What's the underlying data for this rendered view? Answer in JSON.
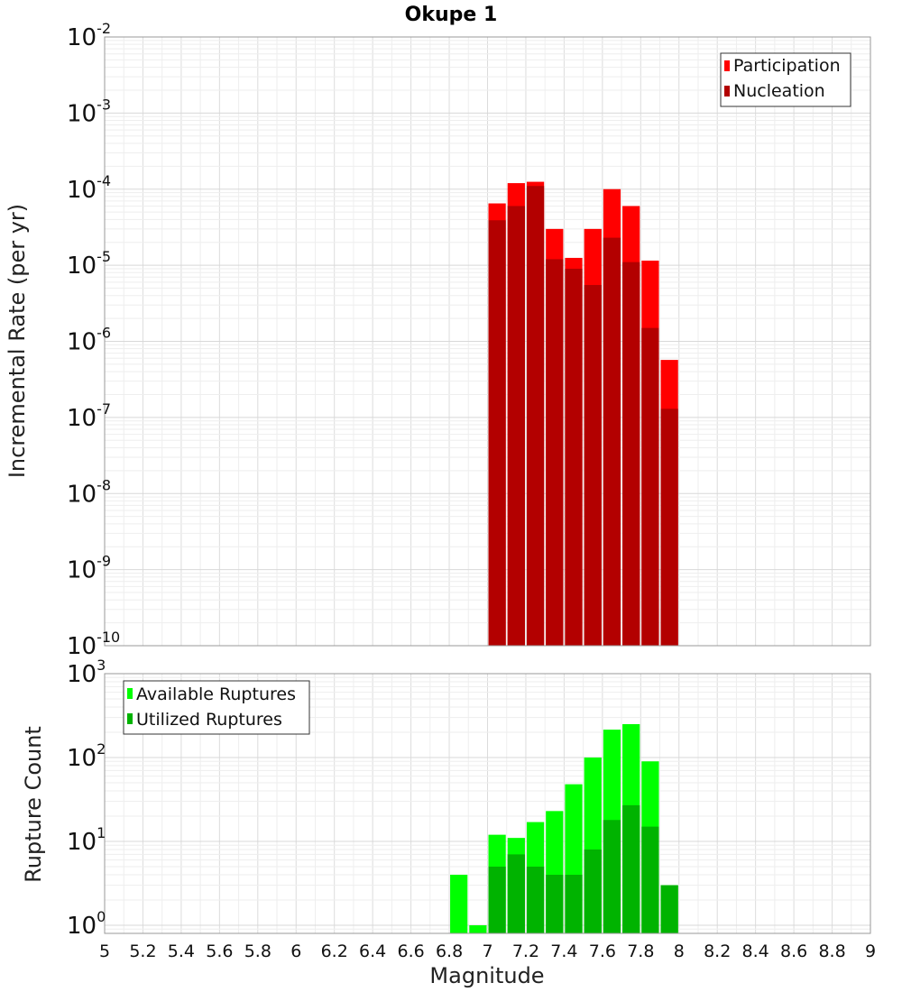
{
  "chart_data": [
    {
      "type": "bar",
      "title": "Okupe 1",
      "xlabel": "",
      "ylabel": "Incremental Rate (per yr)",
      "yscale": "log",
      "ylim": [
        1e-10,
        0.01
      ],
      "xlim": [
        5,
        9
      ],
      "grid": true,
      "legend_position": "top-right",
      "x": [
        7.05,
        7.15,
        7.25,
        7.35,
        7.45,
        7.55,
        7.65,
        7.75,
        7.85,
        7.95
      ],
      "series": [
        {
          "name": "Participation",
          "color": "#ff0000",
          "values": [
            6.5e-05,
            0.00012,
            0.000125,
            3e-05,
            1.25e-05,
            3e-05,
            0.0001,
            6e-05,
            1.15e-05,
            5.7e-07
          ]
        },
        {
          "name": "Nucleation",
          "color": "#b30000",
          "values": [
            3.9e-05,
            6e-05,
            0.00011,
            1.2e-05,
            9e-06,
            5.5e-06,
            2.3e-05,
            1.1e-05,
            1.5e-06,
            1.3e-07
          ]
        }
      ],
      "y_ticks": [
        {
          "base": "10",
          "exp": "-2"
        },
        {
          "base": "10",
          "exp": "-3"
        },
        {
          "base": "10",
          "exp": "-4"
        },
        {
          "base": "10",
          "exp": "-5"
        },
        {
          "base": "10",
          "exp": "-6"
        },
        {
          "base": "10",
          "exp": "-7"
        },
        {
          "base": "10",
          "exp": "-8"
        },
        {
          "base": "10",
          "exp": "-9"
        },
        {
          "base": "10",
          "exp": "-10"
        }
      ]
    },
    {
      "type": "bar",
      "title": "",
      "xlabel": "Magnitude",
      "ylabel": "Rupture Count",
      "yscale": "log",
      "ylim": [
        0.8,
        1000
      ],
      "xlim": [
        5,
        9
      ],
      "grid": true,
      "legend_position": "top-left",
      "x": [
        6.85,
        6.95,
        7.05,
        7.15,
        7.25,
        7.35,
        7.45,
        7.55,
        7.65,
        7.75,
        7.85,
        7.95
      ],
      "series": [
        {
          "name": "Available Ruptures",
          "color": "#00ff00",
          "values": [
            4,
            1,
            12,
            11,
            17,
            23,
            48,
            100,
            215,
            250,
            90,
            3
          ]
        },
        {
          "name": "Utilized Ruptures",
          "color": "#00b300",
          "values": [
            0,
            0,
            5,
            7,
            5,
            4,
            4,
            8,
            18,
            27,
            15,
            3
          ]
        }
      ],
      "y_ticks": [
        {
          "base": "10",
          "exp": "3"
        },
        {
          "base": "10",
          "exp": "2"
        },
        {
          "base": "10",
          "exp": "1"
        },
        {
          "base": "10",
          "exp": "0"
        }
      ],
      "x_ticks": [
        "5",
        "5.2",
        "5.4",
        "5.6",
        "5.8",
        "6",
        "6.2",
        "6.4",
        "6.6",
        "6.8",
        "7",
        "7.2",
        "7.4",
        "7.6",
        "7.8",
        "8",
        "8.2",
        "8.4",
        "8.6",
        "8.8",
        "9"
      ]
    }
  ]
}
